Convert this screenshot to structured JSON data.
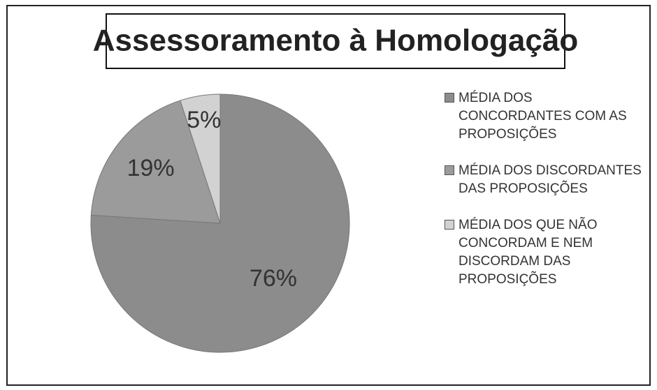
{
  "chart_data": {
    "type": "pie",
    "title": "Assessoramento à Homologação",
    "categories": [
      "MÉDIA DOS CONCORDANTES COM AS PROPOSIÇÕES",
      "MÉDIA DOS DISCORDANTES DAS PROPOSIÇÕES",
      "MÉDIA DOS QUE NÃO CONCORDAM E NEM DISCORDAM DAS PROPOSIÇÕES"
    ],
    "values": [
      76,
      19,
      5
    ],
    "value_labels": [
      "76%",
      "19%",
      "5%"
    ],
    "colors": [
      "#8c8c8c",
      "#9b9b9b",
      "#d2d2d2"
    ],
    "legend": "right"
  }
}
